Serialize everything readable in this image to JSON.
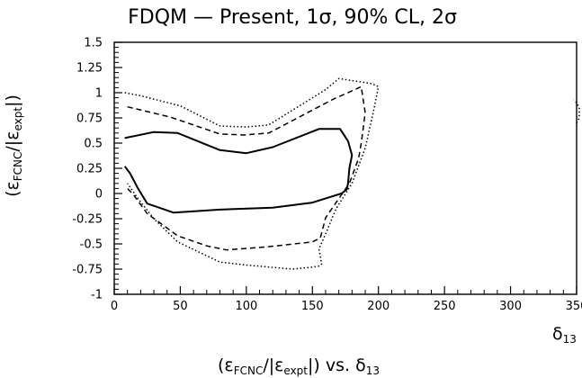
{
  "chart_data": {
    "type": "line",
    "title": "FDQM — Present, 1σ, 90% CL, 2σ",
    "xlabel": {
      "main": "(ε",
      "sub1": "FCNC",
      "mid": "/|ε",
      "sub2": "expt",
      "end": "|) vs. δ",
      "sub3": "13"
    },
    "ylabel": {
      "main": "(ε",
      "sub1": "FCNC",
      "mid": "/|ε",
      "sub2": "expt",
      "end": "|)"
    },
    "axis_corner_label": {
      "main": "δ",
      "sub": "13"
    },
    "xlim": [
      0,
      350
    ],
    "ylim": [
      -1,
      1.5
    ],
    "x_ticks": [
      "0",
      "50",
      "100",
      "150",
      "200",
      "250",
      "300",
      "350"
    ],
    "y_ticks": [
      "1.5",
      "1.25",
      "1",
      "0.75",
      "0.5",
      "0.25",
      "0",
      "-0.25",
      "-0.5",
      "-0.75",
      "-1"
    ],
    "grid": false,
    "series": [
      {
        "style": "solid",
        "segments": [
          [
            [
              8,
              0.55
            ],
            [
              30,
              0.61
            ],
            [
              48,
              0.6
            ],
            [
              80,
              0.43
            ],
            [
              100,
              0.4
            ],
            [
              120,
              0.46
            ],
            [
              155,
              0.64
            ],
            [
              171,
              0.64
            ],
            [
              177,
              0.52
            ],
            [
              180,
              0.38
            ],
            [
              178,
              0.25
            ],
            [
              177,
              0.1
            ],
            [
              176,
              0.04
            ],
            [
              172,
              0.0
            ],
            [
              150,
              -0.09
            ],
            [
              120,
              -0.14
            ],
            [
              80,
              -0.16
            ],
            [
              45,
              -0.19
            ],
            [
              25,
              -0.1
            ],
            [
              18,
              0.05
            ],
            [
              12,
              0.2
            ],
            [
              8,
              0.27
            ]
          ]
        ]
      },
      {
        "style": "dashed",
        "segments": [
          [
            [
              10,
              0.86
            ],
            [
              42,
              0.76
            ],
            [
              80,
              0.59
            ],
            [
              98,
              0.58
            ],
            [
              117,
              0.6
            ],
            [
              165,
              0.93
            ],
            [
              187,
              1.06
            ],
            [
              190,
              0.8
            ],
            [
              187,
              0.5
            ],
            [
              185,
              0.35
            ],
            [
              178,
              0.1
            ],
            [
              170,
              -0.05
            ],
            [
              160,
              -0.24
            ],
            [
              156,
              -0.44
            ],
            [
              150,
              -0.48
            ],
            [
              115,
              -0.53
            ],
            [
              85,
              -0.56
            ],
            [
              70,
              -0.52
            ],
            [
              48,
              -0.42
            ],
            [
              25,
              -0.2
            ],
            [
              15,
              -0.02
            ],
            [
              10,
              0.05
            ]
          ]
        ]
      },
      {
        "style": "dotted",
        "segments": [
          [
            [
              8,
              1.0
            ],
            [
              20,
              0.97
            ],
            [
              50,
              0.87
            ],
            [
              80,
              0.67
            ],
            [
              100,
              0.66
            ],
            [
              117,
              0.68
            ],
            [
              160,
              1.03
            ],
            [
              170,
              1.14
            ],
            [
              195,
              1.09
            ],
            [
              200,
              1.06
            ],
            [
              196,
              0.8
            ],
            [
              190,
              0.45
            ],
            [
              180,
              0.1
            ],
            [
              168,
              -0.15
            ],
            [
              160,
              -0.4
            ],
            [
              155,
              -0.55
            ],
            [
              157,
              -0.7
            ],
            [
              155,
              -0.72
            ],
            [
              150,
              -0.73
            ],
            [
              135,
              -0.75
            ],
            [
              100,
              -0.71
            ],
            [
              80,
              -0.68
            ],
            [
              48,
              -0.48
            ],
            [
              30,
              -0.25
            ],
            [
              18,
              -0.05
            ],
            [
              10,
              0.1
            ]
          ],
          [
            [
              350,
              0.7
            ],
            [
              352,
              0.75
            ],
            [
              352,
              0.85
            ],
            [
              350,
              0.9
            ],
            [
              348,
              0.93
            ]
          ]
        ]
      }
    ]
  }
}
